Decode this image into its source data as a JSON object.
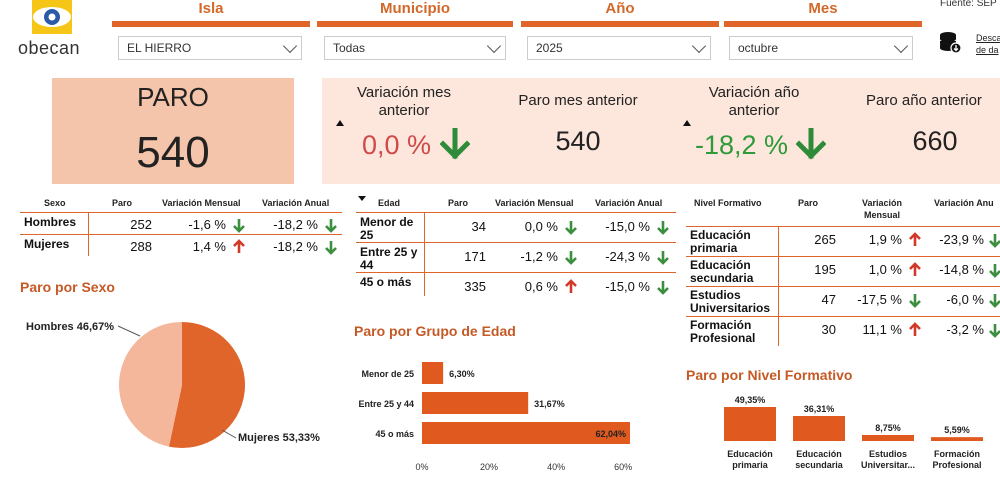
{
  "brand": {
    "name": "obecan"
  },
  "source": {
    "text": "Fuente: SEP"
  },
  "download": {
    "line1": "Desca",
    "line2": "de da"
  },
  "filters": [
    {
      "title": "Isla",
      "value": "EL HIERRO"
    },
    {
      "title": "Municipio",
      "value": "Todas"
    },
    {
      "title": "Año",
      "value": "2025"
    },
    {
      "title": "Mes",
      "value": "octubre"
    }
  ],
  "kpi": {
    "paro_label": "PARO",
    "paro_value": "540",
    "var_mes_label_1": "Variación mes",
    "var_mes_label_2": "anterior",
    "var_mes_value": "0,0 %",
    "paro_mes_label": "Paro mes anterior",
    "paro_mes_value": "540",
    "var_anio_label_1": "Variación año",
    "var_anio_label_2": "anterior",
    "var_anio_value": "-18,2 %",
    "paro_anio_label": "Paro año anterior",
    "paro_anio_value": "660",
    "colors": {
      "negative_red": "#d04a4a",
      "positive_green": "#2e9a3a"
    }
  },
  "sexo_table": {
    "headers": [
      "Sexo",
      "Paro",
      "Variación Mensual",
      "Variación Anual"
    ],
    "rows": [
      {
        "label": "Hombres",
        "paro": "252",
        "vm": "-1,6 %",
        "vm_dir": "down",
        "va": "-18,2 %",
        "va_dir": "down"
      },
      {
        "label": "Mujeres",
        "paro": "288",
        "vm": "1,4 %",
        "vm_dir": "up",
        "va": "-18,2 %",
        "va_dir": "down"
      }
    ]
  },
  "edad_table": {
    "headers": [
      "Edad",
      "Paro",
      "Variación Mensual",
      "Variación Anual"
    ],
    "rows": [
      {
        "label1": "Menor de",
        "label2": "25",
        "paro": "34",
        "vm": "0,0 %",
        "vm_dir": "down",
        "va": "-15,0 %",
        "va_dir": "down"
      },
      {
        "label1": "Entre 25 y",
        "label2": "44",
        "paro": "171",
        "vm": "-1,2 %",
        "vm_dir": "down",
        "va": "-24,3 %",
        "va_dir": "down"
      },
      {
        "label1": "45 o más",
        "label2": "",
        "paro": "335",
        "vm": "0,6 %",
        "vm_dir": "up",
        "va": "-15,0 %",
        "va_dir": "down"
      }
    ]
  },
  "nivel_table": {
    "headers": [
      "Nivel Formativo",
      "Paro",
      "Variación",
      "Mensual",
      "Variación Anu"
    ],
    "rows": [
      {
        "label1": "Educación",
        "label2": "primaria",
        "paro": "265",
        "vm": "1,9 %",
        "vm_dir": "up",
        "va": "-23,9 %",
        "va_dir": "down"
      },
      {
        "label1": "Educación",
        "label2": "secundaria",
        "paro": "195",
        "vm": "1,0 %",
        "vm_dir": "up",
        "va": "-14,8 %",
        "va_dir": "down"
      },
      {
        "label1": "Estudios",
        "label2": "Universitarios",
        "paro": "47",
        "vm": "-17,5 %",
        "vm_dir": "down",
        "va": "-6,0 %",
        "va_dir": "down"
      },
      {
        "label1": "Formación",
        "label2": "Profesional",
        "paro": "30",
        "vm": "11,1 %",
        "vm_dir": "up",
        "va": "-3,2 %",
        "va_dir": "down"
      }
    ]
  },
  "sections": {
    "sexo": "Paro por Sexo",
    "edad": "Paro por Grupo de Edad",
    "nivel": "Paro por Nivel Formativo"
  },
  "chart_data": [
    {
      "type": "pie",
      "title": "Paro por Sexo",
      "categories": [
        "Hombres",
        "Mujeres"
      ],
      "values": [
        46.67,
        53.33
      ],
      "labels": [
        "Hombres 46,67%",
        "Mujeres 53,33%"
      ],
      "colors": [
        "#f4b79b",
        "#e0652a"
      ]
    },
    {
      "type": "bar",
      "orientation": "horizontal",
      "title": "Paro por Grupo de Edad",
      "categories": [
        "Menor de 25",
        "Entre 25 y 44",
        "45 o más"
      ],
      "values": [
        6.3,
        31.67,
        62.04
      ],
      "data_labels": [
        "6,30%",
        "31,67%",
        "62,04%"
      ],
      "xticks": [
        "0%",
        "20%",
        "40%",
        "60%"
      ],
      "xlim": [
        0,
        62.04
      ],
      "color": "#e0591f"
    },
    {
      "type": "bar",
      "title": "Paro por Nivel Formativo",
      "categories": [
        [
          "Educación",
          "primaria"
        ],
        [
          "Educación",
          "secundaria"
        ],
        [
          "Estudios",
          "Universitar..."
        ],
        [
          "Formación",
          "Profesional"
        ]
      ],
      "values": [
        49.35,
        36.31,
        8.75,
        5.59
      ],
      "data_labels": [
        "49,35%",
        "36,31%",
        "8,75%",
        "5,59%"
      ],
      "color": "#e0591f"
    }
  ]
}
